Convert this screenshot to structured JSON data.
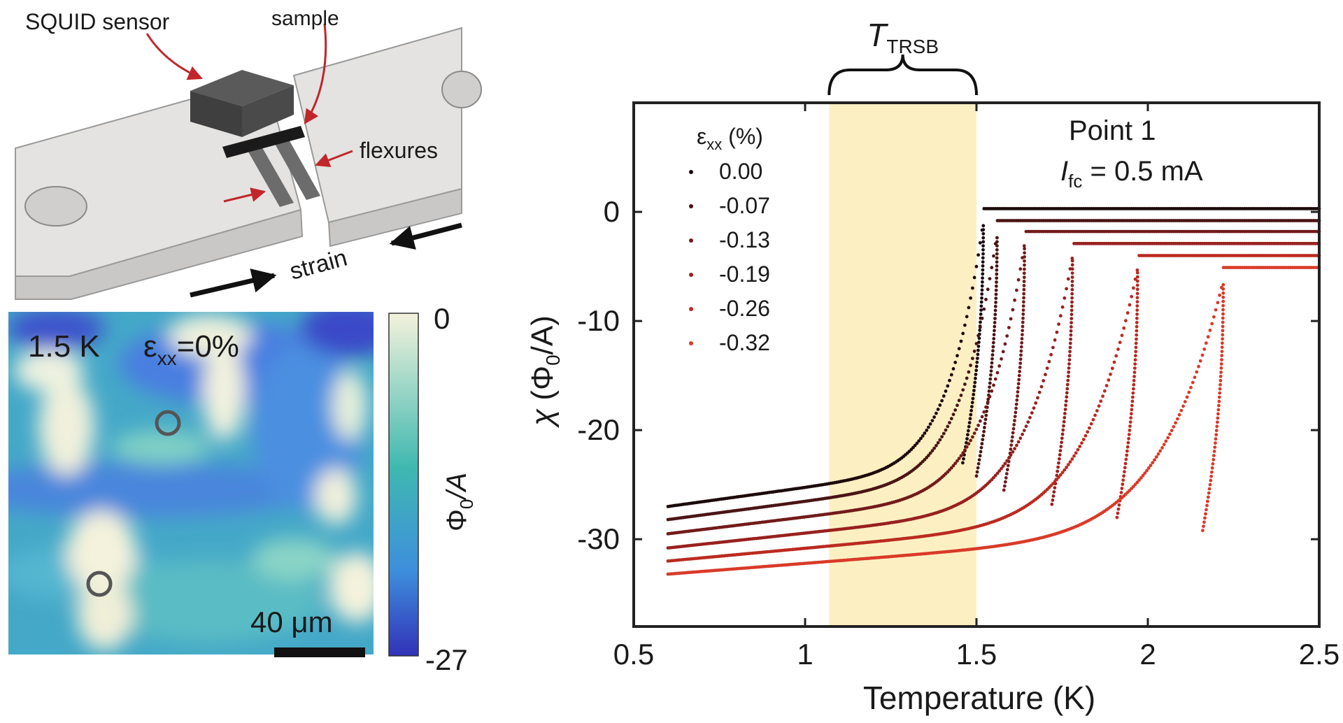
{
  "schematic": {
    "squid_label": "SQUID sensor",
    "sample_label": "sample",
    "flexures_label": "flexures",
    "strain_label": "strain"
  },
  "map": {
    "temp_label": "1.5 K",
    "strain_prefix": "ε",
    "strain_sub": "xx",
    "strain_value": "=0%",
    "scalebar_label": "40 μm",
    "colorbar_max": "0",
    "colorbar_min": "-27",
    "colorbar_label_main": "Φ",
    "colorbar_label_sub": "0",
    "colorbar_label_rest": "/A",
    "colors": {
      "low": "#3a3fc8",
      "mid": "#3fb8b0",
      "high": "#f4f2dc"
    }
  },
  "chart_data": {
    "type": "scatter",
    "xlabel": "Temperature (K)",
    "ylabel_chi": "χ",
    "ylabel_unit_main": "(Φ",
    "ylabel_unit_sub": "0",
    "ylabel_unit_rest": "/A)",
    "xlim": [
      0.5,
      2.5
    ],
    "ylim": [
      -38,
      10
    ],
    "xticks": [
      0.5,
      1,
      1.5,
      2,
      2.5
    ],
    "xtick_labels": [
      "0.5",
      "1",
      "1.5",
      "2",
      "2.5"
    ],
    "yticks": [
      -30,
      -20,
      -10,
      0
    ],
    "ytick_labels": [
      "-30",
      "-20",
      "-10",
      "0"
    ],
    "band": {
      "label_main": "T",
      "label_sub": "TRSB",
      "x0": 1.07,
      "x1": 1.5,
      "color": "#fbedb8"
    },
    "annotation": {
      "line1": "Point 1",
      "line2_main": "I",
      "line2_sub": "fc",
      "line2_rest": " = 0.5 mA"
    },
    "legend": {
      "title_main": "ε",
      "title_sub": "xx",
      "title_rest": " (%)",
      "placement": "top-left"
    },
    "series": [
      {
        "name": "0.00",
        "color": "#1c0a0a",
        "tc": 1.52,
        "y_low": -27.0,
        "y_plateau": 0.3
      },
      {
        "name": "-0.07",
        "color": "#4a1414",
        "tc": 1.56,
        "y_low": -28.2,
        "y_plateau": -0.8
      },
      {
        "name": "-0.13",
        "color": "#731a1a",
        "tc": 1.64,
        "y_low": -29.5,
        "y_plateau": -1.8
      },
      {
        "name": "-0.19",
        "color": "#98201e",
        "tc": 1.78,
        "y_low": -30.8,
        "y_plateau": -2.9
      },
      {
        "name": "-0.26",
        "color": "#bb2a20",
        "tc": 1.97,
        "y_low": -32.0,
        "y_plateau": -4.0
      },
      {
        "name": "-0.32",
        "color": "#d93a28",
        "tc": 2.22,
        "y_low": -33.2,
        "y_plateau": -5.1
      }
    ]
  }
}
